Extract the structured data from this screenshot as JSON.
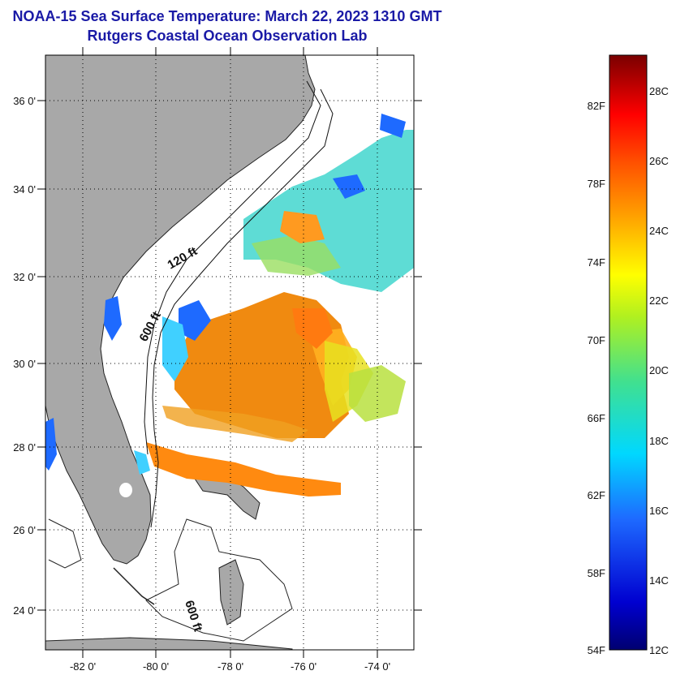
{
  "title": {
    "line1": "NOAA-15 Sea Surface Temperature:  March 22, 2023 1310 GMT",
    "line2": "Rutgers Coastal Ocean Observation Lab"
  },
  "map": {
    "lat_labels": [
      "36 0'",
      "34 0'",
      "32 0'",
      "30 0'",
      "28 0'",
      "26 0'",
      "24 0'"
    ],
    "lon_labels": [
      "-82 0'",
      "-80 0'",
      "-78 0'",
      "-76 0'",
      "-74 0'"
    ],
    "contours": [
      "120 ft",
      "600 ft",
      "600 ft"
    ],
    "colors": {
      "land": "#a8a8a8",
      "water_nodata": "#ffffff"
    }
  },
  "colorbar": {
    "fahrenheit_labels": [
      "82F",
      "78F",
      "74F",
      "70F",
      "66F",
      "62F",
      "58F",
      "54F"
    ],
    "celsius_labels": [
      "28C",
      "26C",
      "24C",
      "22C",
      "20C",
      "18C",
      "16C",
      "14C",
      "12C"
    ]
  }
}
